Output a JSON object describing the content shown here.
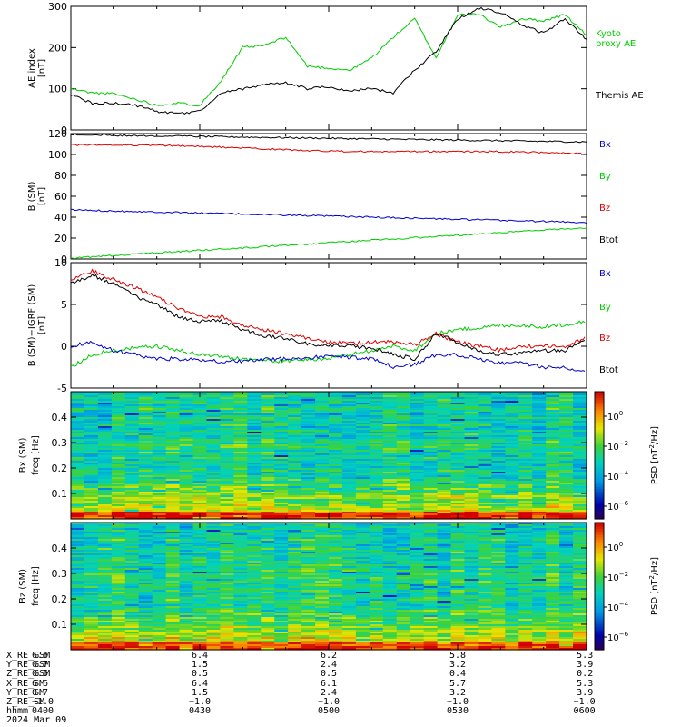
{
  "colors": {
    "black": "#000000",
    "red": "#dd0000",
    "green": "#00cc00",
    "blue": "#0000cc",
    "axis": "#000000"
  },
  "time_axis": {
    "start": "0400",
    "end": "0600",
    "tick_labels": [
      "0400",
      "0430",
      "0500",
      "0530",
      "0600"
    ]
  },
  "chart_data": [
    {
      "type": "line",
      "panel": "ae-index",
      "ylabel": "AE index",
      "yunit": "[nT]",
      "ylim": [
        0,
        300
      ],
      "yticks": [
        0,
        100,
        200,
        300
      ],
      "x": [
        "0400",
        "0405",
        "0410",
        "0415",
        "0420",
        "0425",
        "0430",
        "0435",
        "0440",
        "0445",
        "0450",
        "0455",
        "0500",
        "0505",
        "0510",
        "0515",
        "0520",
        "0525",
        "0530",
        "0535",
        "0540",
        "0545",
        "0550",
        "0555",
        "0600"
      ],
      "series": [
        {
          "name": "Kyoto proxy AE",
          "label_lines": [
            "Kyoto",
            "proxy AE"
          ],
          "color": "green",
          "values": [
            100,
            90,
            88,
            75,
            60,
            65,
            60,
            120,
            200,
            205,
            225,
            155,
            150,
            145,
            175,
            225,
            270,
            175,
            280,
            280,
            250,
            270,
            265,
            280,
            230
          ]
        },
        {
          "name": "Themis AE",
          "label_lines": [
            "Themis AE"
          ],
          "color": "black",
          "values": [
            85,
            65,
            65,
            60,
            45,
            40,
            45,
            90,
            100,
            110,
            115,
            100,
            105,
            95,
            100,
            90,
            145,
            190,
            270,
            295,
            285,
            255,
            235,
            270,
            220
          ]
        }
      ]
    },
    {
      "type": "line",
      "panel": "b-sm",
      "ylabel": "B (SM)",
      "yunit": "[nT]",
      "ylim": [
        0,
        120
      ],
      "yticks": [
        0,
        20,
        40,
        60,
        80,
        100,
        120
      ],
      "x_start": "0400",
      "x_end": "0600",
      "series": [
        {
          "name": "Bx",
          "color": "blue",
          "start": 47,
          "end": 35
        },
        {
          "name": "By",
          "color": "green",
          "start": 1,
          "end": 30
        },
        {
          "name": "Bz",
          "color": "red",
          "start": 109,
          "end": 100
        },
        {
          "name": "Btot",
          "color": "black",
          "start": 119,
          "end": 112
        }
      ]
    },
    {
      "type": "line",
      "panel": "b-minus-igrf",
      "ylabel": "B (SM)−IGRF (SM)",
      "yunit": "[nT]",
      "ylim": [
        -5,
        10
      ],
      "yticks": [
        -5,
        0,
        5,
        10
      ],
      "x": [
        "0400",
        "0405",
        "0410",
        "0415",
        "0420",
        "0425",
        "0430",
        "0435",
        "0440",
        "0445",
        "0450",
        "0455",
        "0500",
        "0505",
        "0510",
        "0515",
        "0520",
        "0525",
        "0530",
        "0535",
        "0540",
        "0545",
        "0550",
        "0555",
        "0600"
      ],
      "series": [
        {
          "name": "Bx",
          "color": "blue",
          "values": [
            0,
            0.5,
            -0.5,
            -1,
            -1.5,
            -1.5,
            -1.7,
            -1.8,
            -1.8,
            -1.6,
            -1.5,
            -1.4,
            -1.2,
            -1.3,
            -1.5,
            -2.5,
            -2.2,
            -1,
            -1,
            -1.5,
            -2,
            -2,
            -2.5,
            -2.5,
            -3
          ]
        },
        {
          "name": "By",
          "color": "green",
          "values": [
            -2.5,
            -1,
            -0.5,
            -0.2,
            0,
            -0.5,
            -1,
            -1.2,
            -1.5,
            -1.7,
            -1.8,
            -1.6,
            -1.5,
            -1,
            -0.5,
            0,
            -0.5,
            1.5,
            2,
            2.2,
            2.5,
            2.5,
            2.3,
            2.6,
            3
          ]
        },
        {
          "name": "Bz",
          "color": "red",
          "values": [
            8,
            9,
            8,
            7,
            6,
            4.5,
            3.5,
            3.5,
            2.5,
            2,
            1.5,
            1,
            0.5,
            0.3,
            0.5,
            0.5,
            0.2,
            1.5,
            0.5,
            0,
            -0.5,
            0,
            0,
            0,
            1
          ]
        },
        {
          "name": "Btot",
          "color": "black",
          "values": [
            7.5,
            8.5,
            7.5,
            6,
            5,
            3.5,
            3,
            3,
            2,
            1.2,
            1,
            0.3,
            0,
            0,
            -0.2,
            -1,
            -1.5,
            1.5,
            0.5,
            -0.5,
            -1,
            -0.8,
            -0.5,
            -0.5,
            1
          ]
        }
      ]
    },
    {
      "type": "heatmap",
      "panel": "bx-spectrogram",
      "ylabel": "Bx (SM)",
      "ylabel2": "freq",
      "yunit": "[Hz]",
      "ylim": [
        0,
        0.5
      ],
      "yticks": [
        0.1,
        0.2,
        0.3,
        0.4
      ],
      "colorbar": {
        "label": "PSD [nT²/Hz]",
        "label_parts": [
          "PSD ",
          "[nT",
          "2",
          "/Hz]"
        ],
        "ticks": [
          {
            "value": "10",
            "exp": "0"
          },
          {
            "value": "10",
            "exp": "−2"
          },
          {
            "value": "10",
            "exp": "−4"
          },
          {
            "value": "10",
            "exp": "−6"
          }
        ]
      }
    },
    {
      "type": "heatmap",
      "panel": "bz-spectrogram",
      "ylabel": "Bz (SM)",
      "ylabel2": "freq",
      "yunit": "[Hz]",
      "ylim": [
        0,
        0.5
      ],
      "yticks": [
        0.1,
        0.2,
        0.3,
        0.4
      ],
      "colorbar": {
        "label": "PSD [nT²/Hz]",
        "label_parts": [
          "PSD ",
          "[nT",
          "2",
          "/Hz]"
        ],
        "ticks": [
          {
            "value": "10",
            "exp": "0"
          },
          {
            "value": "10",
            "exp": "−2"
          },
          {
            "value": "10",
            "exp": "−4"
          },
          {
            "value": "10",
            "exp": "−6"
          }
        ]
      }
    }
  ],
  "ephemeris": {
    "rows": [
      {
        "name": "X_RE_GSM",
        "values": [
          "6.6",
          "6.4",
          "6.2",
          "5.8",
          "5.3"
        ]
      },
      {
        "name": "Y_RE_GSM",
        "values": [
          "0.7",
          "1.5",
          "2.4",
          "3.2",
          "3.9"
        ]
      },
      {
        "name": "Z_RE_GSM",
        "values": [
          "0.5",
          "0.5",
          "0.5",
          "0.4",
          "0.2"
        ]
      },
      {
        "name": "X_RE_SM",
        "values": [
          "6.6",
          "6.4",
          "6.1",
          "5.7",
          "5.3"
        ]
      },
      {
        "name": "Y_RE_SM",
        "values": [
          "0.7",
          "1.5",
          "2.4",
          "3.2",
          "3.9"
        ]
      },
      {
        "name": "Z_RE_SM",
        "values": [
          "−1.0",
          "−1.0",
          "−1.0",
          "−1.0",
          "−1.0"
        ]
      },
      {
        "name": "hhmm",
        "values": [
          "0400",
          "0430",
          "0500",
          "0530",
          "0600"
        ]
      }
    ],
    "date": "2024 Mar 09"
  }
}
